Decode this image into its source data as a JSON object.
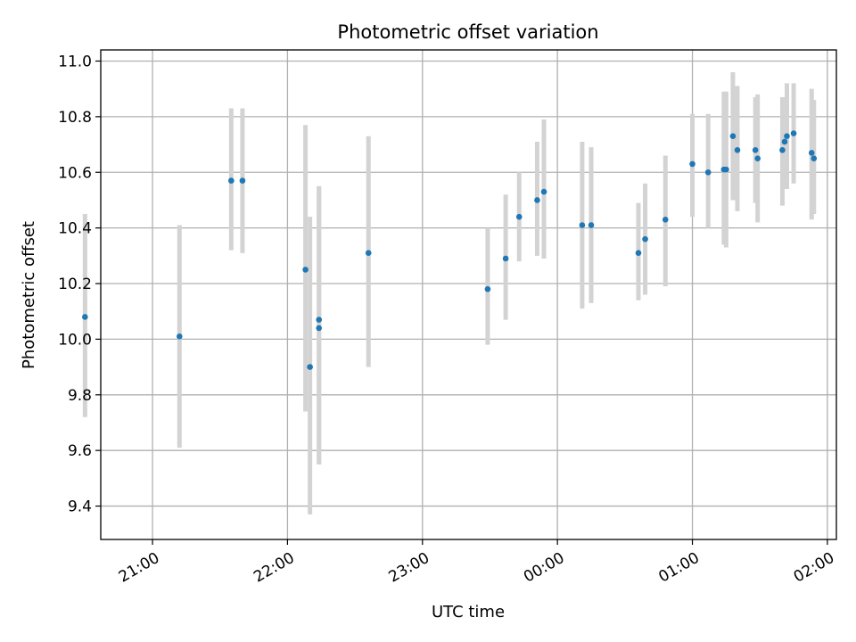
{
  "chart_data": {
    "type": "scatter",
    "title": "Photometric offset variation",
    "xlabel": "UTC time",
    "ylabel": "Photometric offset",
    "x_is_time": true,
    "xlim": [
      "20:37",
      "02:04"
    ],
    "ylim": [
      9.28,
      11.04
    ],
    "yticks": [
      9.4,
      9.6,
      9.8,
      10.0,
      10.2,
      10.4,
      10.6,
      10.8,
      11.0
    ],
    "xticks": [
      "21:00",
      "22:00",
      "23:00",
      "00:00",
      "01:00",
      "02:00"
    ],
    "grid": true,
    "point_color": "#1f77b4",
    "errorbar_color": "#d3d3d3",
    "points": [
      {
        "x": "20:30",
        "y": 10.08,
        "ylow": 9.72,
        "yhigh": 10.45
      },
      {
        "x": "21:12",
        "y": 10.01,
        "ylow": 9.61,
        "yhigh": 10.41
      },
      {
        "x": "21:35",
        "y": 10.57,
        "ylow": 10.32,
        "yhigh": 10.83
      },
      {
        "x": "21:40",
        "y": 10.57,
        "ylow": 10.31,
        "yhigh": 10.83
      },
      {
        "x": "22:08",
        "y": 10.25,
        "ylow": 9.74,
        "yhigh": 10.77
      },
      {
        "x": "22:10",
        "y": 9.9,
        "ylow": 9.37,
        "yhigh": 10.44
      },
      {
        "x": "22:14",
        "y": 10.07,
        "ylow": 9.55,
        "yhigh": 10.55
      },
      {
        "x": "22:14",
        "y": 10.04,
        "ylow": 9.55,
        "yhigh": 10.55
      },
      {
        "x": "22:36",
        "y": 10.31,
        "ylow": 9.9,
        "yhigh": 10.73
      },
      {
        "x": "23:29",
        "y": 10.18,
        "ylow": 9.98,
        "yhigh": 10.4
      },
      {
        "x": "23:37",
        "y": 10.29,
        "ylow": 10.07,
        "yhigh": 10.52
      },
      {
        "x": "23:43",
        "y": 10.44,
        "ylow": 10.28,
        "yhigh": 10.6
      },
      {
        "x": "23:51",
        "y": 10.5,
        "ylow": 10.3,
        "yhigh": 10.71
      },
      {
        "x": "23:54",
        "y": 10.53,
        "ylow": 10.29,
        "yhigh": 10.79
      },
      {
        "x": "00:11",
        "y": 10.41,
        "ylow": 10.11,
        "yhigh": 10.71
      },
      {
        "x": "00:15",
        "y": 10.41,
        "ylow": 10.13,
        "yhigh": 10.69
      },
      {
        "x": "00:36",
        "y": 10.31,
        "ylow": 10.14,
        "yhigh": 10.49
      },
      {
        "x": "00:39",
        "y": 10.36,
        "ylow": 10.16,
        "yhigh": 10.56
      },
      {
        "x": "00:48",
        "y": 10.43,
        "ylow": 10.19,
        "yhigh": 10.66
      },
      {
        "x": "01:00",
        "y": 10.63,
        "ylow": 10.44,
        "yhigh": 10.81
      },
      {
        "x": "01:07",
        "y": 10.6,
        "ylow": 10.4,
        "yhigh": 10.81
      },
      {
        "x": "01:14",
        "y": 10.61,
        "ylow": 10.34,
        "yhigh": 10.89
      },
      {
        "x": "01:15",
        "y": 10.61,
        "ylow": 10.33,
        "yhigh": 10.89
      },
      {
        "x": "01:18",
        "y": 10.73,
        "ylow": 10.5,
        "yhigh": 10.96
      },
      {
        "x": "01:20",
        "y": 10.68,
        "ylow": 10.46,
        "yhigh": 10.91
      },
      {
        "x": "01:28",
        "y": 10.68,
        "ylow": 10.49,
        "yhigh": 10.87
      },
      {
        "x": "01:29",
        "y": 10.65,
        "ylow": 10.42,
        "yhigh": 10.88
      },
      {
        "x": "01:40",
        "y": 10.68,
        "ylow": 10.48,
        "yhigh": 10.87
      },
      {
        "x": "01:41",
        "y": 10.71,
        "ylow": 10.55,
        "yhigh": 10.87
      },
      {
        "x": "01:42",
        "y": 10.73,
        "ylow": 10.54,
        "yhigh": 10.92
      },
      {
        "x": "01:45",
        "y": 10.74,
        "ylow": 10.56,
        "yhigh": 10.92
      },
      {
        "x": "01:53",
        "y": 10.67,
        "ylow": 10.43,
        "yhigh": 10.9
      },
      {
        "x": "01:54",
        "y": 10.65,
        "ylow": 10.45,
        "yhigh": 10.86
      }
    ]
  }
}
